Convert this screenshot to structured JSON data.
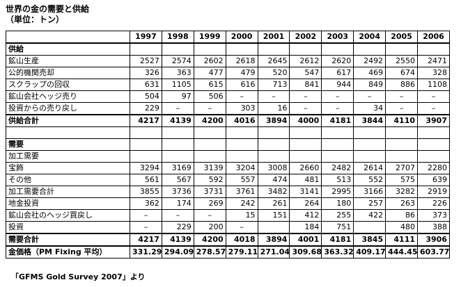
{
  "header": {
    "title": "世界の金の需要と供給",
    "unit": "（単位：トン）"
  },
  "table": {
    "columns": [
      1997,
      1998,
      1999,
      2000,
      2001,
      2002,
      2003,
      2004,
      2005,
      2006
    ],
    "rows": [
      {
        "label": "供給",
        "bold": true,
        "cells": []
      },
      {
        "label": "鉱山生産",
        "cells": [
          2527,
          2574,
          2602,
          2618,
          2645,
          2612,
          2620,
          2492,
          2550,
          2471
        ]
      },
      {
        "label": "公的機関売却",
        "cells": [
          326,
          363,
          477,
          479,
          520,
          547,
          617,
          469,
          674,
          328
        ]
      },
      {
        "label": "スクラップの回収",
        "cells": [
          631,
          1105,
          615,
          616,
          713,
          841,
          944,
          849,
          886,
          1108
        ]
      },
      {
        "label": "鉱山会社ヘッジ売り",
        "cells": [
          504,
          97,
          506,
          "–",
          "–",
          "–",
          "–",
          "–",
          "–",
          "–"
        ]
      },
      {
        "label": "投資からの売り戻し",
        "cells": [
          229,
          "–",
          "–",
          303,
          16,
          "–",
          "–",
          34,
          "–",
          "–"
        ]
      },
      {
        "label": "供給合計",
        "bold": true,
        "total": true,
        "cells": [
          4217,
          4139,
          4200,
          4016,
          3894,
          4000,
          4181,
          3844,
          4110,
          3907
        ]
      },
      {
        "label": null,
        "cells": []
      },
      {
        "label": "需要",
        "bold": true,
        "cells": []
      },
      {
        "label": "加工需要",
        "cells": []
      },
      {
        "label": "宝飾",
        "cells": [
          3294,
          3169,
          3139,
          3204,
          3008,
          2660,
          2482,
          2614,
          2707,
          2280
        ]
      },
      {
        "label": "その他",
        "cells": [
          561,
          567,
          592,
          557,
          474,
          481,
          513,
          552,
          575,
          639
        ]
      },
      {
        "label": "加工需要合計",
        "cells": [
          3855,
          3736,
          3731,
          3761,
          3482,
          3141,
          2995,
          3166,
          3282,
          2919
        ]
      },
      {
        "label": "地金投資",
        "cells": [
          362,
          174,
          269,
          242,
          261,
          264,
          180,
          257,
          263,
          226
        ]
      },
      {
        "label": "鉱山会社のヘッジ買戻し",
        "cells": [
          "–",
          "–",
          "–",
          15,
          151,
          412,
          255,
          422,
          86,
          373
        ]
      },
      {
        "label": "投資",
        "cells": [
          "–",
          229,
          200,
          "–",
          null,
          184,
          751,
          null,
          480,
          388
        ]
      },
      {
        "label": "需要合計",
        "bold": true,
        "total": true,
        "cells": [
          4217,
          4139,
          4200,
          4018,
          3894,
          4001,
          4181,
          3845,
          4111,
          3906
        ]
      },
      {
        "label": "金価格（PM Fixing 平均）",
        "bold": true,
        "total": true,
        "cells": [
          331.29,
          294.09,
          278.57,
          279.11,
          271.04,
          309.68,
          363.32,
          409.17,
          444.45,
          603.77
        ]
      }
    ]
  },
  "footer": {
    "source": "「GFMS Gold Survey 2007」より"
  }
}
